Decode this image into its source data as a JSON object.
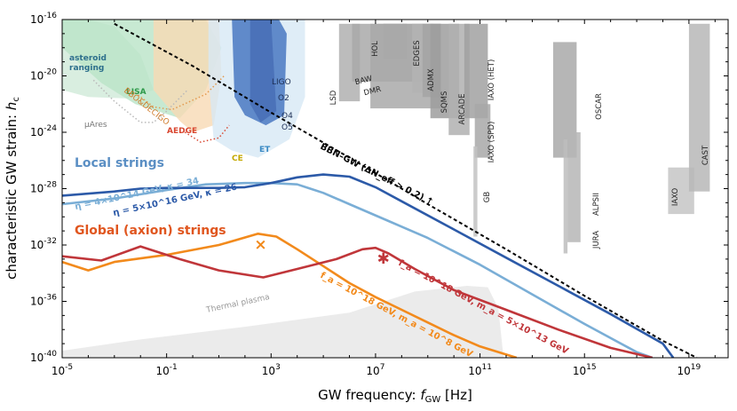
{
  "chart_data": {
    "type": "line",
    "xlabel": "GW frequency: f_GW [Hz]",
    "ylabel": "characteristic GW strain: h_c",
    "x_scale": "log10",
    "y_scale": "log10",
    "xlim_log10": [
      -5,
      20.5
    ],
    "ylim_log10": [
      -40,
      -16
    ],
    "x_ticks_log10": [
      -5,
      -1,
      3,
      7,
      11,
      15,
      19
    ],
    "y_ticks_log10": [
      -40,
      -36,
      -32,
      -28,
      -24,
      -20,
      -16
    ],
    "colors": {
      "local_light": "#7aaed6",
      "local_dark": "#2c5aa8",
      "axion_light": "#f28a1c",
      "axion_dark": "#c0363a",
      "bbn": "#000000",
      "lisa": "#b9e3c7",
      "ligo": "#4a78c2",
      "et": "#cfe4f4",
      "thermal": "#e8e8e8",
      "haloscope": "#a8a8a8"
    },
    "series": [
      {
        "name": "η = 4×10^14 GeV, κ = 34",
        "color": "#7aaed6",
        "x_log10": [
          -5,
          -3,
          -1,
          0.5,
          2,
          3,
          4,
          4.5,
          5,
          6,
          7.5,
          9,
          11,
          13,
          15,
          17,
          17.6
        ],
        "y_log10": [
          -29.1,
          -28.7,
          -28.1,
          -27.7,
          -27.6,
          -27.6,
          -27.7,
          -28.0,
          -28.3,
          -29.1,
          -30.3,
          -31.5,
          -33.4,
          -35.5,
          -37.6,
          -39.6,
          -40
        ]
      },
      {
        "name": "η = 5×10^16 GeV, κ = 26",
        "color": "#2c5aa8",
        "x_log10": [
          -5,
          -3,
          -2,
          -1,
          0,
          1,
          2,
          3,
          4,
          5,
          6,
          7,
          8,
          10,
          12,
          14,
          16,
          18,
          18.4
        ],
        "y_log10": [
          -28.5,
          -28.2,
          -28.0,
          -27.95,
          -27.95,
          -27.95,
          -27.9,
          -27.6,
          -27.2,
          -27.0,
          -27.15,
          -27.9,
          -28.9,
          -30.9,
          -32.9,
          -34.9,
          -36.9,
          -39.0,
          -40
        ]
      },
      {
        "name": "f_a = 10^18 GeV, m_a = 10^8 GeV",
        "color": "#f28a1c",
        "x_log10": [
          -5,
          -4,
          -3,
          -1,
          1,
          2.5,
          3.2,
          4,
          5,
          6,
          7,
          8,
          9,
          10,
          11,
          12.4
        ],
        "y_log10": [
          -33.2,
          -33.8,
          -33.2,
          -32.7,
          -32.0,
          -31.2,
          -31.4,
          -32.3,
          -33.5,
          -34.7,
          -35.7,
          -36.6,
          -37.5,
          -38.4,
          -39.2,
          -40
        ]
      },
      {
        "name": "f_a = 10^18 GeV, m_a = 5×10^13 GeV",
        "color": "#c0363a",
        "x_log10": [
          -5,
          -3.5,
          -2,
          -0.5,
          1,
          2.7,
          4,
          5.5,
          6.5,
          7,
          7.5,
          8.5,
          10,
          12,
          14,
          16,
          17.6
        ],
        "y_log10": [
          -32.8,
          -33.1,
          -32.1,
          -33.0,
          -33.8,
          -34.3,
          -33.7,
          -33.0,
          -32.3,
          -32.2,
          -32.6,
          -33.7,
          -35.2,
          -36.6,
          -38.0,
          -39.3,
          -40
        ]
      },
      {
        "name": "BBN–GW",
        "color": "#000000",
        "dashed": true,
        "x_log10": [
          -3,
          0,
          3,
          6,
          9,
          12,
          15,
          18,
          19.3
        ],
        "y_log10": [
          -16.3,
          -19.3,
          -22.6,
          -25.8,
          -29.1,
          -32.3,
          -35.6,
          -38.8,
          -40
        ]
      }
    ],
    "markers": [
      {
        "label": "×",
        "x_log10": 2.6,
        "y_log10": -32.0,
        "color": "#f28a1c"
      },
      {
        "label": "✱",
        "x_log10": 7.3,
        "y_log10": -33.0,
        "color": "#c0363a"
      }
    ],
    "regions": [
      {
        "name": "asteroid ranging",
        "color": "#cfead8",
        "x_log10": [
          -5,
          -4,
          -3,
          -2,
          -1.5,
          -2.5,
          -4,
          -5
        ],
        "y_log10": [
          -16,
          -16,
          -16.5,
          -18.5,
          -21,
          -21.6,
          -21.5,
          -21
        ]
      },
      {
        "name": "LISA",
        "color": "#b9e3c7",
        "x_log10": [
          -5,
          -3,
          -1,
          0.5,
          1.1,
          0.5,
          -0.5,
          -2.2,
          -3.5,
          -5
        ],
        "y_log10": [
          -16,
          -16,
          -16,
          -16,
          -18,
          -21,
          -23,
          -22,
          -20.5,
          -18
        ]
      },
      {
        "name": "AEDGE",
        "color": "#f7d9b4",
        "x_log10": [
          -1.5,
          0,
          1.0,
          1.1,
          0.8,
          0,
          -0.5,
          -1.5
        ],
        "y_log10": [
          -16,
          -16,
          -16,
          -20,
          -23.5,
          -24,
          -23.2,
          -21
        ]
      },
      {
        "name": "ET",
        "color": "#d7e8f5",
        "x_log10": [
          0.6,
          3.5,
          4.3,
          4.3,
          3.7,
          2.5,
          1.5,
          0.8,
          0.6
        ],
        "y_log10": [
          -16,
          -16,
          -16,
          -21.5,
          -24.5,
          -25.8,
          -25.3,
          -24.5,
          -20
        ]
      },
      {
        "name": "LIGO",
        "color": "#4a78c2",
        "x_log10": [
          1.5,
          3.3,
          3.6,
          3.5,
          2.8,
          2.0,
          1.6,
          1.5
        ],
        "y_log10": [
          -16,
          -16,
          -17,
          -22.8,
          -23.5,
          -22.8,
          -21.5,
          -16
        ]
      },
      {
        "name": "Thermal plasma",
        "color": "#e6e6e6",
        "x_log10": [
          -5,
          -2,
          2,
          6,
          8.5,
          10.5,
          11.3,
          11.7,
          11.9,
          11.5,
          -5
        ],
        "y_log10": [
          -39.5,
          -38.7,
          -37.8,
          -36.8,
          -35.3,
          -34.9,
          -35.0,
          -36.5,
          -40,
          -40,
          -40
        ]
      }
    ],
    "experiments": [
      {
        "name": "LSD",
        "x_log10": [
          5.6,
          6.4
        ],
        "y_log10": [
          -16.3,
          -21.8
        ],
        "color": "#b0b0b0"
      },
      {
        "name": "HOL",
        "x_log10": [
          7.3,
          8.2
        ],
        "y_log10": [
          -16.3,
          -18.8
        ],
        "color": "#9d9d9d"
      },
      {
        "name": "BAW",
        "x_log10": [
          6.1,
          9.2
        ],
        "y_log10": [
          -16.3,
          -20.4
        ],
        "color": "#a9a9a9"
      },
      {
        "name": "DMR",
        "x_log10": [
          6.8,
          9.5
        ],
        "y_log10": [
          -16.3,
          -22.3
        ],
        "color": "#a9a9a9"
      },
      {
        "name": "EDGES",
        "x_log10": [
          8.4,
          8.8
        ],
        "y_log10": [
          -16.3,
          -21.2
        ],
        "color": "#b3b3b3"
      },
      {
        "name": "ADMX",
        "x_log10": [
          8.8,
          9.5
        ],
        "y_log10": [
          -16.3,
          -21.5
        ],
        "color": "#a5a5a5"
      },
      {
        "name": "SQMS",
        "x_log10": [
          9.1,
          10.2
        ],
        "y_log10": [
          -16.3,
          -23.0
        ],
        "color": "#9d9d9d"
      },
      {
        "name": "ARCADE",
        "x_log10": [
          9.8,
          10.6
        ],
        "y_log10": [
          -16.3,
          -24.2
        ],
        "color": "#b0b0b0"
      },
      {
        "name": "IAXO (HET)",
        "x_log10": [
          10.4,
          11.3
        ],
        "y_log10": [
          -16.3,
          -23.0
        ],
        "color": "#a1a1a1"
      },
      {
        "name": "IAXO (SPD)",
        "x_log10": [
          10.8,
          11.4
        ],
        "y_log10": [
          -22.0,
          -25.8
        ],
        "color": "#a8a8a8"
      },
      {
        "name": "GB",
        "x_log10": [
          10.75,
          10.9
        ],
        "y_log10": [
          -25.0,
          -31.4
        ],
        "color": "#c2c2c2"
      },
      {
        "name": "OSCAR",
        "x_log10": [
          13.8,
          14.7
        ],
        "y_log10": [
          -17.6,
          -25.8
        ],
        "color": "#a9a9a9"
      },
      {
        "name": "ALPSII",
        "x_log10": [
          14.2,
          14.35
        ],
        "y_log10": [
          -24.5,
          -32.6
        ],
        "color": "#bdbdbd"
      },
      {
        "name": "JURA",
        "x_log10": [
          14.35,
          14.85
        ],
        "y_log10": [
          -24.0,
          -31.8
        ],
        "color": "#b6b6b6"
      },
      {
        "name": "IAXO",
        "x_log10": [
          18.2,
          19.2
        ],
        "y_log10": [
          -26.5,
          -29.8
        ],
        "color": "#c6c6c6"
      },
      {
        "name": "CAST",
        "x_log10": [
          19.0,
          19.8
        ],
        "y_log10": [
          -16.3,
          -28.2
        ],
        "color": "#b7b7b7"
      }
    ],
    "annotations": {
      "asteroid": "asteroid\nranging",
      "lisa": "LISA",
      "mu_ares": "μAres",
      "bbo_decigo": "BBO&DECIGO",
      "aedge": "AEDGE",
      "ce": "CE",
      "et": "ET",
      "ligo": "LIGO",
      "o2": "O2",
      "o4": "O4",
      "o5": "O5",
      "thermal": "Thermal plasma",
      "local_strings": "Local strings",
      "global_strings": "Global (axion) strings",
      "eta1": "η = 4×10^14 GeV, κ = 34",
      "eta2": "η = 5×10^16 GeV, κ = 26",
      "fa1": "f_a = 10^18 GeV, m_a = 10^8 GeV",
      "fa2": "f_a = 10^18 GeV, m_a = 5×10^13 GeV",
      "bbn": "BBN–GW (ΔN_eff > 0.2) ↑"
    }
  }
}
